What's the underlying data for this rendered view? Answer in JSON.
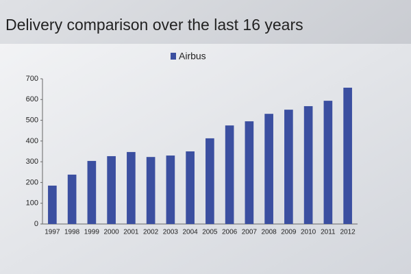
{
  "chart_data": {
    "type": "bar",
    "title": "Delivery comparison over the last 16 years",
    "categories": [
      "1997",
      "1998",
      "1999",
      "2000",
      "2001",
      "2002",
      "2003",
      "2004",
      "2005",
      "2006",
      "2007",
      "2008",
      "2009",
      "2010",
      "2011",
      "2012"
    ],
    "series": [
      {
        "name": "Airbus",
        "color": "#3b4fa0",
        "values": [
          185,
          238,
          304,
          327,
          347,
          323,
          330,
          350,
          413,
          475,
          495,
          531,
          551,
          568,
          594,
          657
        ]
      }
    ],
    "ylim": [
      0,
      700
    ],
    "yticks": [
      0,
      100,
      200,
      300,
      400,
      500,
      600,
      700
    ],
    "grid": false,
    "legend": "top"
  }
}
